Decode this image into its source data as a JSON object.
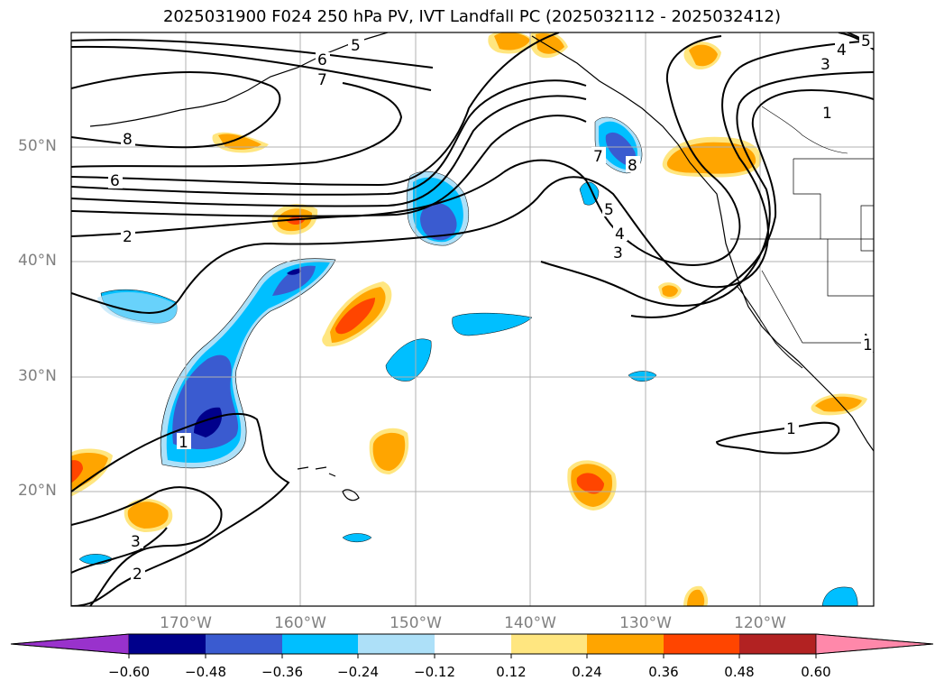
{
  "title": "2025031900 F024 250 hPa PV, IVT Landfall PC (2025032112 - 2025032412)",
  "lat_labels": [
    "50°N",
    "40°N",
    "30°N",
    "20°N"
  ],
  "lon_labels": [
    "170°W",
    "160°W",
    "150°W",
    "140°W",
    "130°W",
    "120°W"
  ],
  "colorbar": {
    "ticks": [
      "−0.60",
      "−0.48",
      "−0.36",
      "−0.24",
      "−0.12",
      "0.12",
      "0.24",
      "0.36",
      "0.48",
      "0.60"
    ],
    "colors": [
      "#9932cc",
      "#00008b",
      "#3a5bd0",
      "#00bfff",
      "#ade0f8",
      "#ffffff",
      "#ffe680",
      "#ffa500",
      "#ff4500",
      "#b22222",
      "#ff88aa"
    ]
  },
  "contour_labels": [
    "5",
    "6",
    "7",
    "8",
    "6",
    "2",
    "5",
    "4",
    "3",
    "1",
    "8",
    "7",
    "5",
    "4",
    "3",
    "1",
    "3",
    "2",
    "1",
    "1"
  ],
  "fill_colors": {
    "dark_blue": "#00008b",
    "mid_blue": "#3a5bd0",
    "cyan": "#00bfff",
    "light_blue": "#ade0f8",
    "light_yellow": "#ffe680",
    "orange": "#ffa500",
    "red_orange": "#ff4500"
  }
}
